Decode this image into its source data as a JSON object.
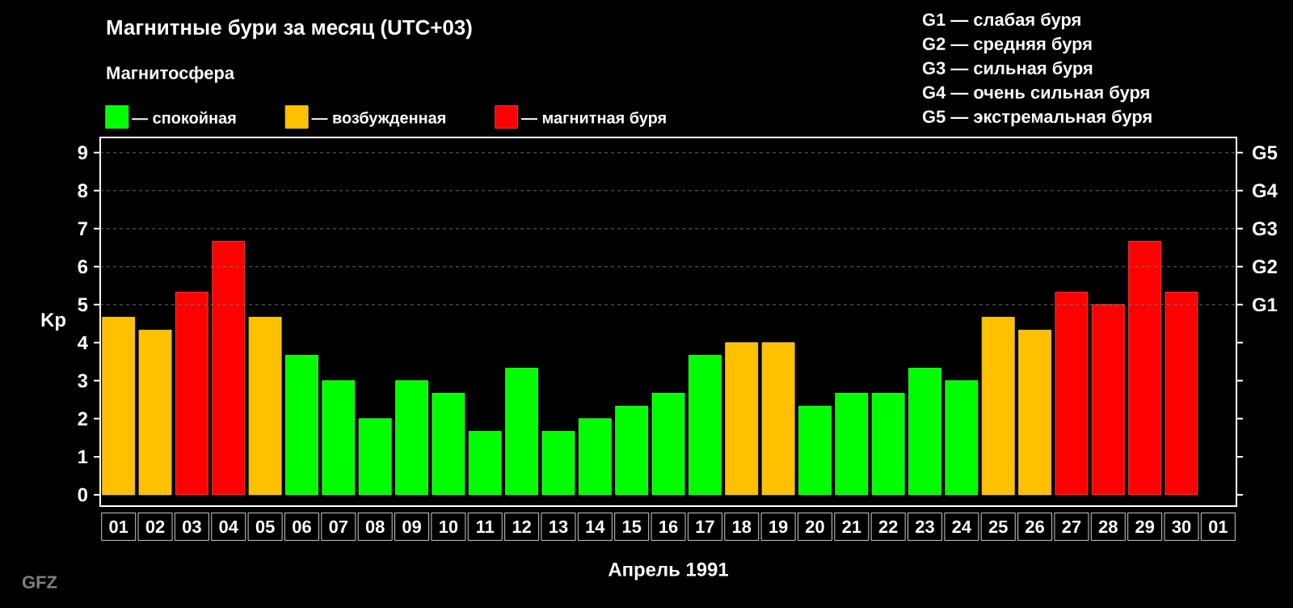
{
  "chart_data": {
    "type": "bar",
    "title": "Магнитные бури за месяц (UTC+03)",
    "legend_title": "Магнитосфера",
    "xlabel": "Апрель 1991",
    "ylabel": "Kp",
    "categories": [
      "01",
      "02",
      "03",
      "04",
      "05",
      "06",
      "07",
      "08",
      "09",
      "10",
      "11",
      "12",
      "13",
      "14",
      "15",
      "16",
      "17",
      "18",
      "19",
      "20",
      "21",
      "22",
      "23",
      "24",
      "25",
      "26",
      "27",
      "28",
      "29",
      "30",
      "01"
    ],
    "legend": "top left",
    "series": [
      {
        "name": "— спокойная",
        "color": "#00ff00",
        "values": [
          null,
          null,
          null,
          null,
          null,
          3.67,
          3.0,
          2.0,
          3.0,
          2.67,
          1.67,
          3.33,
          1.67,
          2.0,
          2.33,
          2.67,
          3.67,
          null,
          null,
          2.33,
          2.67,
          2.67,
          3.33,
          3.0,
          null,
          null,
          null,
          null,
          null,
          null,
          null
        ]
      },
      {
        "name": "— возбужденная",
        "color": "#ffc000",
        "values": [
          4.67,
          4.33,
          null,
          null,
          4.67,
          null,
          null,
          null,
          null,
          null,
          null,
          null,
          null,
          null,
          null,
          null,
          null,
          4.0,
          4.0,
          null,
          null,
          null,
          null,
          null,
          4.67,
          4.33,
          null,
          null,
          null,
          null,
          null
        ]
      },
      {
        "name": "— магнитная буря",
        "color": "#ff0000",
        "values": [
          null,
          null,
          5.33,
          6.67,
          null,
          null,
          null,
          null,
          null,
          null,
          null,
          null,
          null,
          null,
          null,
          null,
          null,
          null,
          null,
          null,
          null,
          null,
          null,
          null,
          null,
          null,
          5.33,
          5.0,
          6.67,
          5.33,
          null
        ]
      }
    ],
    "ylim": [
      -0.3,
      9.4
    ],
    "yticks": [
      0,
      1,
      2,
      3,
      4,
      5,
      6,
      7,
      8,
      9
    ],
    "ref_lines": [
      {
        "axis": "y",
        "value": 5,
        "label": "G1",
        "color": "#808080",
        "line_style": "dotted"
      },
      {
        "axis": "y",
        "value": 6,
        "label": "G2",
        "color": "#808080",
        "line_style": "dotted"
      },
      {
        "axis": "y",
        "value": 7,
        "label": "G3",
        "color": "#808080",
        "line_style": "dotted"
      },
      {
        "axis": "y",
        "value": 8,
        "label": "G4",
        "color": "#808080",
        "line_style": "dotted"
      },
      {
        "axis": "y",
        "value": 9,
        "label": "G5",
        "color": "#808080",
        "line_style": "dotted"
      }
    ],
    "annotations": [
      "G1 — слабая буря",
      "G2 — средняя буря",
      "G3 — сильная буря",
      "G4 — очень сильная буря",
      "G5 — экстремальная буря",
      "GFZ"
    ]
  }
}
